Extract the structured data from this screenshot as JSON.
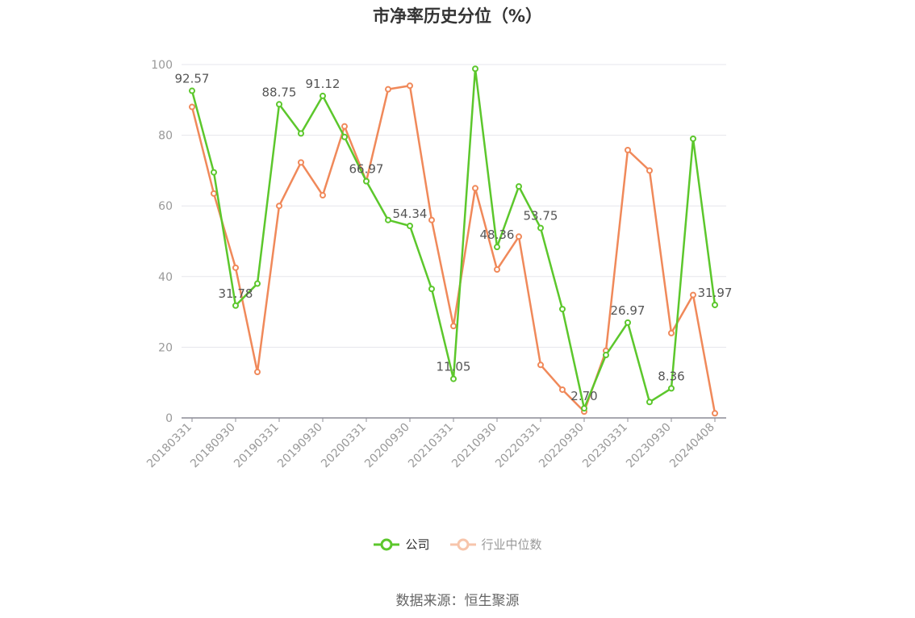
{
  "chart_data": {
    "type": "line",
    "title": "市净率历史分位（%）",
    "ylim": [
      0,
      100
    ],
    "y_ticks": [
      0,
      20,
      40,
      60,
      80,
      100
    ],
    "grid": "horizontal",
    "legend_placement": "bottom-center",
    "x": [
      "20180331",
      "20180630",
      "20180930",
      "20181231",
      "20190331",
      "20190630",
      "20190930",
      "20191231",
      "20200331",
      "20200630",
      "20200930",
      "20201231",
      "20210331",
      "20210630",
      "20210930",
      "20211231",
      "20220331",
      "20220630",
      "20220930",
      "20221231",
      "20230331",
      "20230630",
      "20230930",
      "20231231",
      "20240408"
    ],
    "x_tick_labels": [
      "20180331",
      "20180930",
      "20190331",
      "20190930",
      "20200331",
      "20200930",
      "20210331",
      "20210930",
      "20220331",
      "20220930",
      "20230331",
      "20230930",
      "20240408"
    ],
    "series": [
      {
        "name": "公司",
        "color": "#5cc72c",
        "values": [
          92.57,
          69.5,
          31.78,
          38.0,
          88.75,
          80.5,
          91.12,
          79.5,
          66.97,
          56.0,
          54.34,
          36.5,
          11.05,
          98.8,
          48.36,
          65.5,
          53.75,
          30.8,
          2.7,
          17.8,
          26.97,
          4.5,
          8.36,
          79.0,
          31.97
        ],
        "data_labels": [
          {
            "index": 0,
            "text": "92.57"
          },
          {
            "index": 2,
            "text": "31.78"
          },
          {
            "index": 4,
            "text": "88.75"
          },
          {
            "index": 6,
            "text": "91.12"
          },
          {
            "index": 8,
            "text": "66.97"
          },
          {
            "index": 10,
            "text": "54.34"
          },
          {
            "index": 12,
            "text": "11.05"
          },
          {
            "index": 14,
            "text": "48.36"
          },
          {
            "index": 16,
            "text": "53.75"
          },
          {
            "index": 18,
            "text": "2.70"
          },
          {
            "index": 20,
            "text": "26.97"
          },
          {
            "index": 22,
            "text": "8.36"
          },
          {
            "index": 24,
            "text": "31.97"
          }
        ]
      },
      {
        "name": "行业中位数",
        "color": "#f0895a",
        "values": [
          88.0,
          63.5,
          42.5,
          13.0,
          60.0,
          72.3,
          63.0,
          82.5,
          67.0,
          93.0,
          94.0,
          56.0,
          26.0,
          65.0,
          42.0,
          51.3,
          15.0,
          8.0,
          1.8,
          19.0,
          75.8,
          70.0,
          24.0,
          34.8,
          1.3
        ]
      }
    ],
    "source_note": "数据来源：恒生聚源"
  }
}
